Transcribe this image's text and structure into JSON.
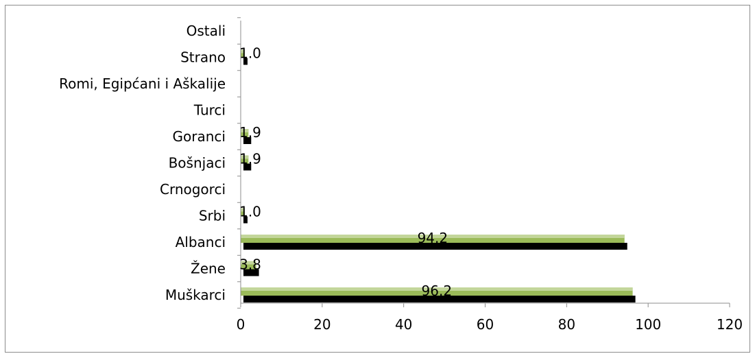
{
  "chart_data": {
    "type": "bar",
    "orientation": "horizontal",
    "categories": [
      "Ostali",
      "Strano",
      "Romi, Egipćani i Aškalije",
      "Turci",
      "Goranci",
      "Bošnjaci",
      "Crnogorci",
      "Srbi",
      "Albanci",
      "Žene",
      "Muškarci"
    ],
    "series": [
      {
        "values": [
          null,
          1.0,
          null,
          null,
          1.9,
          1.9,
          null,
          1.0,
          94.2,
          3.8,
          96.2
        ]
      },
      {
        "values": [
          null,
          1.0,
          null,
          null,
          1.9,
          1.9,
          null,
          1.0,
          94.2,
          3.8,
          96.2
        ]
      }
    ],
    "data_labels": [
      "",
      "1.0",
      "",
      "",
      "1.9",
      "1.9",
      "",
      "1.0",
      "94.2",
      "3.8",
      "96.2"
    ],
    "xticks": [
      "0",
      "20",
      "40",
      "60",
      "80",
      "100",
      "120"
    ],
    "xlim": [
      0,
      120
    ],
    "grid": false,
    "legend": "none",
    "colors": {
      "bar_front": "#9bbb59",
      "bar_front_light": "#c3d69b",
      "bar_shadow": "#000000",
      "axis": "#8c8c8c",
      "frame": "#8c8c8c"
    }
  }
}
